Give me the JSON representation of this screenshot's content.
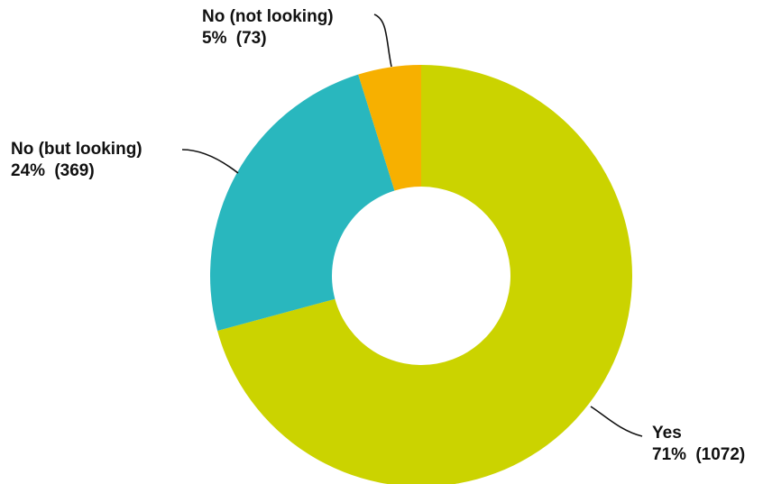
{
  "chart_data": {
    "type": "pie",
    "donut": true,
    "title": "",
    "slices": [
      {
        "label": "Yes",
        "value": 1072,
        "percent": "71%",
        "count_text": "(1072)",
        "color": "#CBD300"
      },
      {
        "label": "No (but looking)",
        "value": 369,
        "percent": "24%",
        "count_text": "(369)",
        "color": "#29B7BE"
      },
      {
        "label": "No (not looking)",
        "value": 73,
        "percent": "5%",
        "count_text": "(73)",
        "color": "#F7B000"
      }
    ],
    "start_angle_deg": 0,
    "direction": "clockwise",
    "legend": "none"
  }
}
